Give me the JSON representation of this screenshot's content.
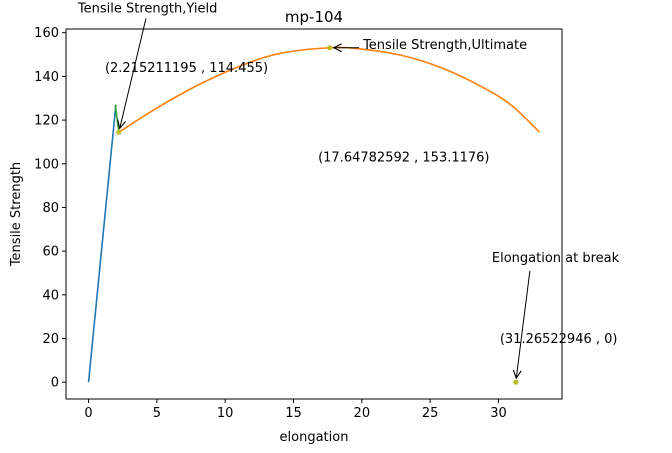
{
  "chart_data": {
    "type": "line",
    "title": "mp-104",
    "xlabel": "elongation",
    "ylabel": "Tensile Strength",
    "xlim": [
      -1.65,
      34.65
    ],
    "ylim": [
      -7.7,
      161.7
    ],
    "xticks": [
      0,
      5,
      10,
      15,
      20,
      25,
      30
    ],
    "yticks": [
      0,
      20,
      40,
      60,
      80,
      100,
      120,
      140,
      160
    ],
    "grid": false,
    "series": [
      {
        "color": "#1f77b4",
        "points": [
          [
            0,
            0
          ],
          [
            2.0,
            127
          ]
        ]
      },
      {
        "color": "#2ca02c",
        "points": [
          [
            1.95,
            127
          ],
          [
            2.22,
            114.5
          ]
        ]
      },
      {
        "color": "#ff7f0e",
        "points": [
          [
            2.215,
            114.455
          ],
          [
            5,
            125.5
          ],
          [
            8,
            136
          ],
          [
            11,
            144.5
          ],
          [
            14,
            150.5
          ],
          [
            17.648,
            153.1176
          ],
          [
            20,
            152.5
          ],
          [
            23,
            149.5
          ],
          [
            26,
            143.5
          ],
          [
            29,
            134.5
          ],
          [
            31,
            126.5
          ],
          [
            33,
            114.5
          ]
        ]
      }
    ],
    "markers": [
      {
        "x": 2.215211195,
        "y": 114.455,
        "color": "#bcbd22"
      },
      {
        "x": 17.64782592,
        "y": 153.1176,
        "color": "#bcbd22"
      },
      {
        "x": 31.26522946,
        "y": 0,
        "color": "#bcbd22"
      }
    ],
    "annotations": [
      {
        "label": "Tensile Strength,Yield",
        "target": [
          2.215211195,
          114.455
        ],
        "text_at": [
          4.2,
          166.5
        ]
      },
      {
        "label": "Tensile Strength,Ultimate",
        "target": [
          17.64782592,
          153.1176
        ],
        "text_at": [
          19.8,
          153.1
        ]
      },
      {
        "label": "Elongation at break",
        "target": [
          31.26522946,
          0
        ],
        "text_at": [
          32.3,
          51
        ]
      }
    ],
    "point_labels": [
      {
        "text": "(2.215211195 , 114.455)",
        "at": [
          1.2,
          142
        ]
      },
      {
        "text": "(17.64782592 , 153.1176)",
        "at": [
          16.8,
          101
        ]
      },
      {
        "text": "(31.26522946 , 0)",
        "at": [
          30.1,
          18
        ]
      }
    ]
  }
}
